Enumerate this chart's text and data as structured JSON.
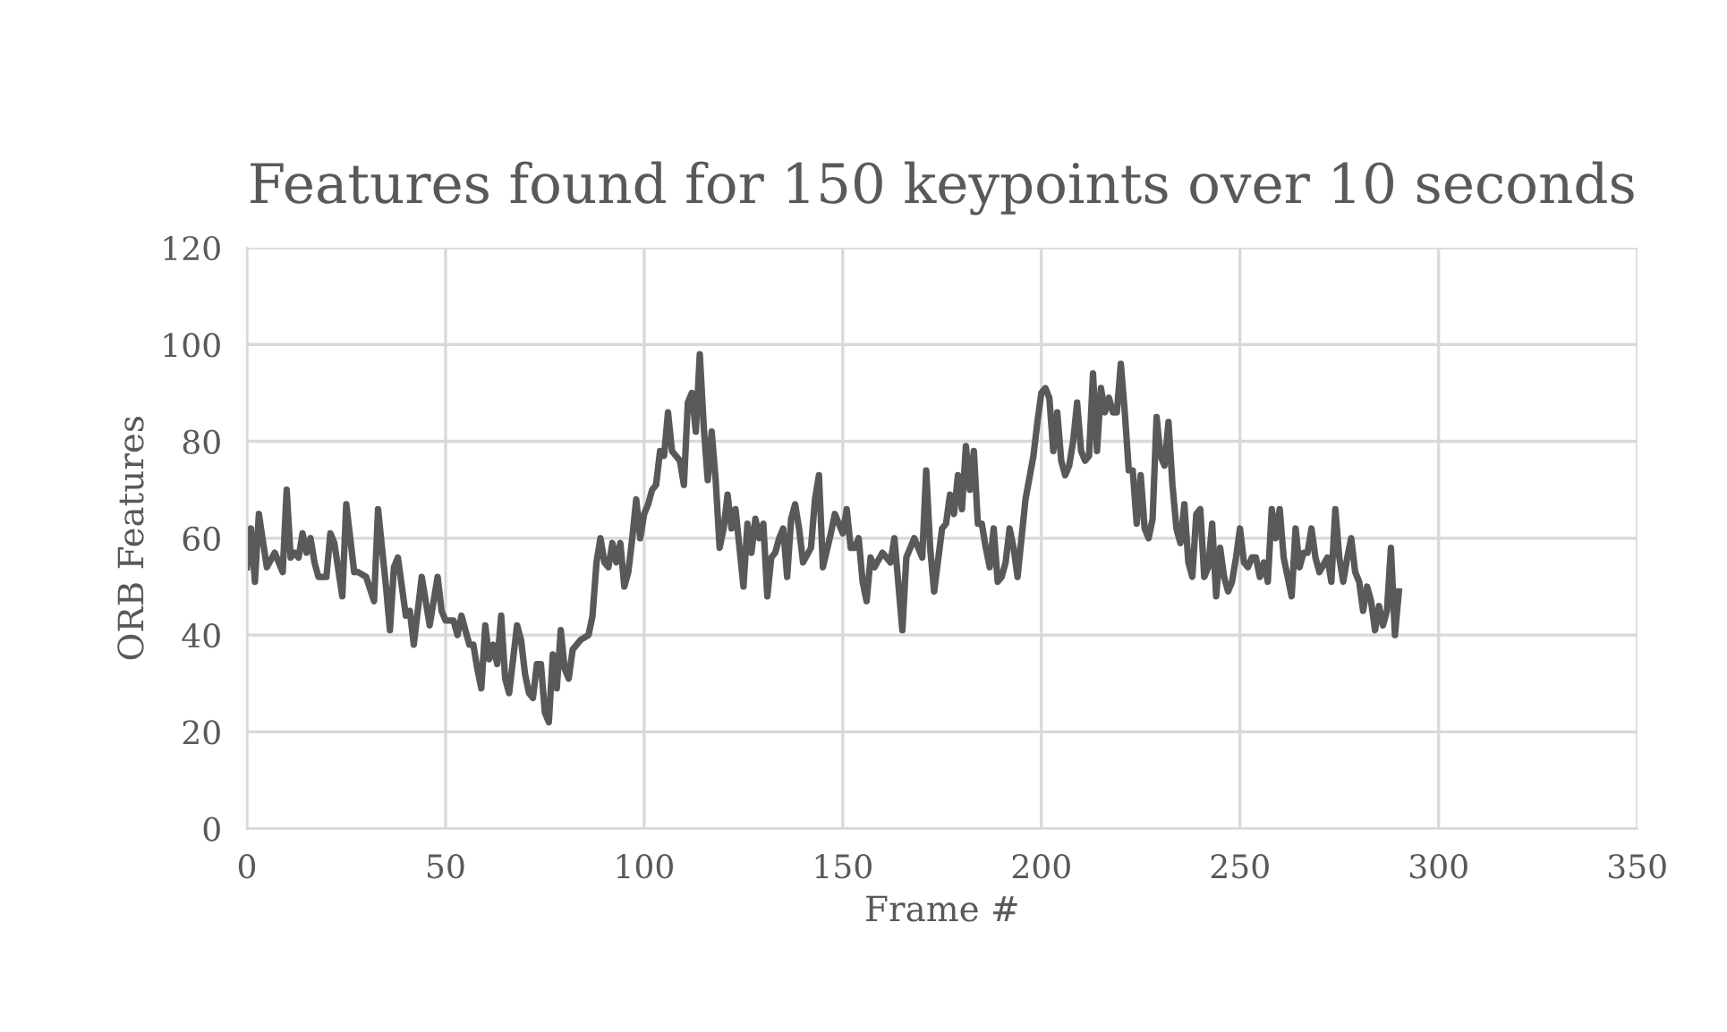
{
  "chart_data": {
    "type": "line",
    "title": "Features found for 150 keypoints over 10 seconds",
    "xlabel": "Frame #",
    "ylabel": "ORB Features",
    "xlim": [
      0,
      350
    ],
    "xticks": [
      0,
      50,
      100,
      150,
      200,
      250,
      300,
      350
    ],
    "ylim": [
      0,
      120
    ],
    "yticks": [
      0,
      20,
      40,
      60,
      80,
      100,
      120
    ],
    "grid": true,
    "series": [
      {
        "color": "#595959",
        "x": [
          0,
          1,
          2,
          3,
          5,
          7,
          8,
          9,
          10,
          11,
          12,
          13,
          14,
          15,
          16,
          17,
          18,
          20,
          21,
          22,
          24,
          25,
          27,
          28,
          30,
          32,
          33,
          35,
          36,
          37,
          38,
          40,
          41,
          42,
          44,
          45,
          46,
          47,
          48,
          49,
          50,
          52,
          53,
          54,
          56,
          57,
          58,
          59,
          60,
          61,
          62,
          63,
          64,
          65,
          66,
          67,
          68,
          69,
          70,
          71,
          72,
          73,
          74,
          75,
          76,
          77,
          78,
          79,
          80,
          81,
          82,
          84,
          86,
          87,
          88,
          89,
          90,
          91,
          92,
          93,
          94,
          95,
          96,
          97,
          98,
          99,
          100,
          101,
          102,
          103,
          104,
          105,
          106,
          107,
          108,
          109,
          110,
          111,
          112,
          113,
          114,
          115,
          116,
          117,
          118,
          119,
          120,
          121,
          122,
          123,
          124,
          125,
          126,
          127,
          128,
          129,
          130,
          131,
          132,
          133,
          134,
          135,
          136,
          137,
          138,
          139,
          140,
          142,
          143,
          144,
          145,
          147,
          148,
          150,
          151,
          152,
          153,
          154,
          155,
          156,
          157,
          158,
          160,
          162,
          163,
          165,
          166,
          167,
          168,
          170,
          171,
          172,
          173,
          175,
          176,
          177,
          178,
          179,
          180,
          181,
          182,
          183,
          184,
          185,
          186,
          187,
          188,
          189,
          190,
          191,
          192,
          193,
          194,
          196,
          198,
          199,
          200,
          201,
          202,
          203,
          204,
          205,
          206,
          207,
          208,
          209,
          210,
          211,
          212,
          213,
          214,
          215,
          216,
          217,
          218,
          219,
          220,
          221,
          222,
          223,
          224,
          225,
          226,
          227,
          228,
          229,
          230,
          231,
          232,
          233,
          234,
          235,
          236,
          237,
          238,
          239,
          240,
          241,
          242,
          243,
          244,
          245,
          246,
          247,
          248,
          249,
          250,
          251,
          252,
          253,
          254,
          255,
          256,
          257,
          258,
          259,
          260,
          261,
          262,
          263,
          264,
          265,
          266,
          267,
          268,
          269,
          270,
          272,
          273,
          274,
          275,
          276,
          277,
          278,
          279,
          280,
          281,
          282,
          283,
          284,
          285,
          286,
          287,
          288,
          289,
          290
        ],
        "values": [
          54,
          62,
          51,
          65,
          54,
          57,
          55,
          53,
          70,
          56,
          57,
          56,
          61,
          57,
          60,
          55,
          52,
          52,
          61,
          59,
          48,
          67,
          53,
          53,
          52,
          47,
          66,
          50,
          41,
          54,
          56,
          44,
          45,
          38,
          52,
          47,
          42,
          47,
          52,
          45,
          43,
          43,
          40,
          44,
          38,
          38,
          33,
          29,
          42,
          35,
          38,
          34,
          44,
          31,
          28,
          35,
          42,
          39,
          32,
          28,
          27,
          34,
          34,
          24,
          22,
          36,
          29,
          41,
          33,
          31,
          37,
          39,
          40,
          44,
          55,
          60,
          55,
          54,
          59,
          55,
          59,
          50,
          53,
          60,
          68,
          60,
          65,
          67,
          70,
          71,
          78,
          77,
          86,
          78,
          77,
          76,
          71,
          88,
          90,
          82,
          98,
          83,
          72,
          82,
          72,
          58,
          62,
          69,
          62,
          66,
          58,
          50,
          63,
          57,
          64,
          60,
          63,
          48,
          56,
          57,
          60,
          62,
          52,
          64,
          67,
          62,
          55,
          58,
          68,
          73,
          54,
          61,
          65,
          61,
          66,
          58,
          58,
          60,
          51,
          47,
          56,
          54,
          57,
          55,
          60,
          41,
          56,
          58,
          60,
          56,
          74,
          58,
          49,
          62,
          63,
          69,
          65,
          73,
          66,
          79,
          70,
          78,
          63,
          63,
          58,
          54,
          62,
          51,
          52,
          55,
          62,
          58,
          52,
          68,
          77,
          84,
          90,
          91,
          89,
          78,
          86,
          76,
          73,
          75,
          80,
          88,
          78,
          76,
          77,
          94,
          78,
          91,
          86,
          89,
          86,
          86,
          96,
          86,
          74,
          74,
          63,
          73,
          62,
          60,
          64,
          85,
          77,
          75,
          84,
          71,
          62,
          59,
          67,
          55,
          52,
          65,
          66,
          52,
          54,
          63,
          48,
          58,
          52,
          49,
          51,
          56,
          62,
          55,
          54,
          56,
          56,
          52,
          55,
          51,
          66,
          60,
          66,
          56,
          52,
          48,
          62,
          54,
          57,
          57,
          62,
          56,
          53,
          56,
          51,
          66,
          56,
          51,
          56,
          60,
          53,
          51,
          45,
          50,
          47,
          41,
          46,
          42,
          45,
          58,
          40,
          49
        ]
      }
    ]
  }
}
